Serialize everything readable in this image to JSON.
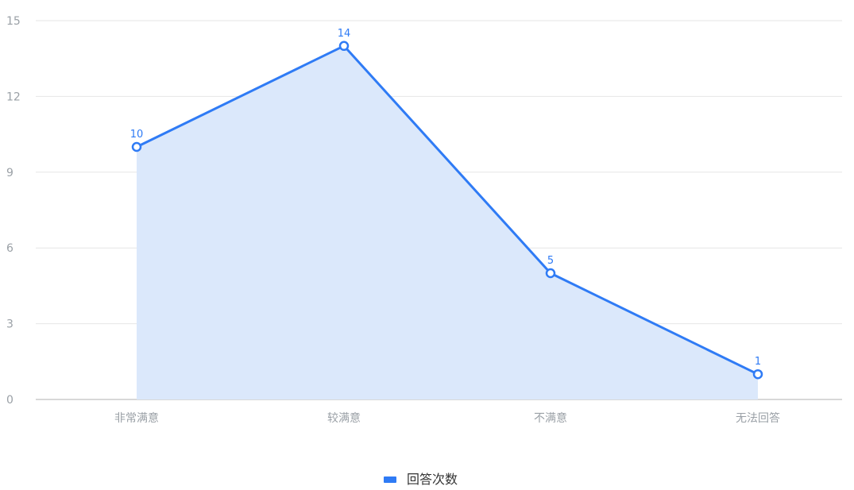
{
  "chart_data": {
    "type": "area",
    "categories": [
      "非常满意",
      "较满意",
      "不满意",
      "无法回答"
    ],
    "series": [
      {
        "name": "回答次数",
        "values": [
          10,
          14,
          5,
          1
        ]
      }
    ],
    "ylim": [
      0,
      15
    ],
    "yticks": [
      0,
      3,
      6,
      9,
      12,
      15
    ],
    "grid": true,
    "legend_position": "bottom-center",
    "colors": {
      "line": "#2f7bf5",
      "area": "#dbe8fb",
      "grid": "#e6e6e6",
      "axis": "#cccccc",
      "tick_text": "#9aa0a6",
      "point_fill": "#ffffff"
    }
  }
}
